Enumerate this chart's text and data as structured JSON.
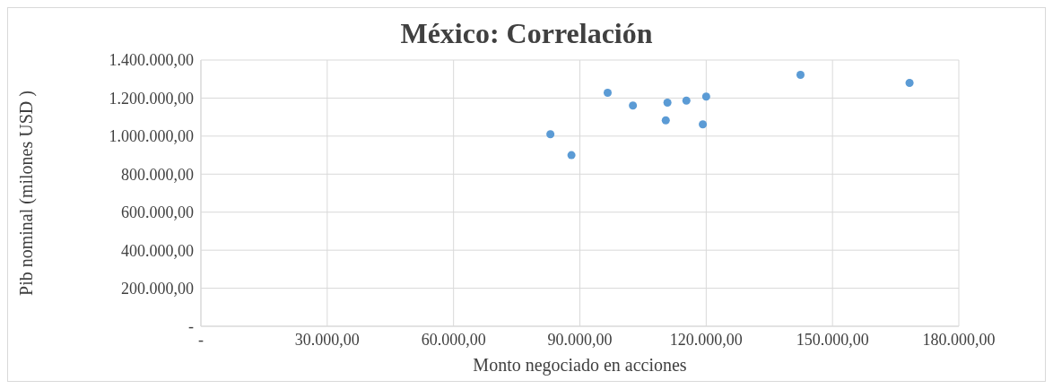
{
  "chart_data": {
    "type": "scatter",
    "title": "México: Correlación",
    "xlabel": "Monto negociado en acciones",
    "ylabel": "Pib nominal (milones USD )",
    "x": [
      83000,
      88000,
      96600,
      102600,
      110800,
      110400,
      115300,
      120000,
      119200,
      142400,
      168300
    ],
    "series": [
      {
        "color": "#5b9bd5",
        "values": [
          1010000,
          900000,
          1228000,
          1161000,
          1176000,
          1083000,
          1187000,
          1208000,
          1062000,
          1322000,
          1280000
        ]
      }
    ],
    "xlim": [
      0,
      180000
    ],
    "xticks": [
      {
        "value": 0,
        "label": "-"
      },
      {
        "value": 30000,
        "label": "30.000,00"
      },
      {
        "value": 60000,
        "label": "60.000,00"
      },
      {
        "value": 90000,
        "label": "90.000,00"
      },
      {
        "value": 120000,
        "label": "120.000,00"
      },
      {
        "value": 150000,
        "label": "150.000,00"
      },
      {
        "value": 180000,
        "label": "180.000,00"
      }
    ],
    "ylim": [
      0,
      1400000
    ],
    "yticks": [
      {
        "value": 0,
        "label": "-"
      },
      {
        "value": 200000,
        "label": "200.000,00"
      },
      {
        "value": 400000,
        "label": "400.000,00"
      },
      {
        "value": 600000,
        "label": "600.000,00"
      },
      {
        "value": 800000,
        "label": "800.000,00"
      },
      {
        "value": 1000000,
        "label": "1.000.000,00"
      },
      {
        "value": 1200000,
        "label": "1.200.000,00"
      },
      {
        "value": 1400000,
        "label": "1.400.000,00"
      }
    ],
    "grid": true,
    "legend": false,
    "marker": "circle"
  }
}
